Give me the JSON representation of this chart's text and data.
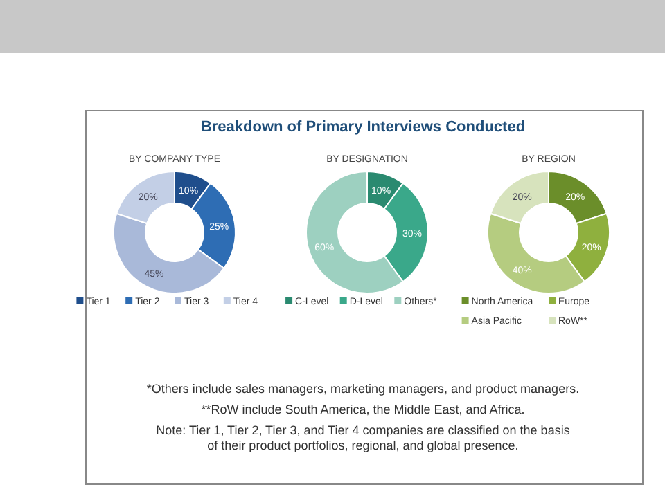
{
  "chart_data": [
    {
      "type": "other",
      "title": "Breakdown of Primary Interviews Conducted",
      "annotations": [
        "*Others include sales managers, marketing managers, and product managers.",
        "**RoW include South America, the Middle East, and Africa.",
        "Note: Tier 1, Tier 2, Tier 3, and Tier 4 companies are classified on the basis of their product portfolios, regional, and global presence."
      ]
    },
    {
      "type": "donut",
      "title": "BY COMPANY TYPE",
      "categories": [
        "Tier 1",
        "Tier 2",
        "Tier 3",
        "Tier 4"
      ],
      "values": [
        10,
        25,
        45,
        20
      ],
      "value_labels": [
        "10%",
        "25%",
        "45%",
        "20%"
      ],
      "colors": [
        "#1f4e8c",
        "#2e6db4",
        "#a9b9d9",
        "#c3cfe6"
      ],
      "legend": "bottom"
    },
    {
      "type": "donut",
      "title": "BY DESIGNATION",
      "categories": [
        "C-Level",
        "D-Level",
        "Others*"
      ],
      "values": [
        10,
        30,
        60
      ],
      "value_labels": [
        "10%",
        "30%",
        "60%"
      ],
      "colors": [
        "#2a8a70",
        "#3aa88a",
        "#9dd0c0"
      ],
      "legend": "bottom"
    },
    {
      "type": "donut",
      "title": "BY REGION",
      "categories": [
        "North America",
        "Europe",
        "Asia Pacific",
        "RoW**"
      ],
      "values": [
        20,
        20,
        40,
        20
      ],
      "value_labels": [
        "20%",
        "20%",
        "40%",
        "20%"
      ],
      "colors": [
        "#6b8e2a",
        "#8fb03e",
        "#b5cc80",
        "#d7e3bd"
      ],
      "legend": "bottom"
    }
  ]
}
